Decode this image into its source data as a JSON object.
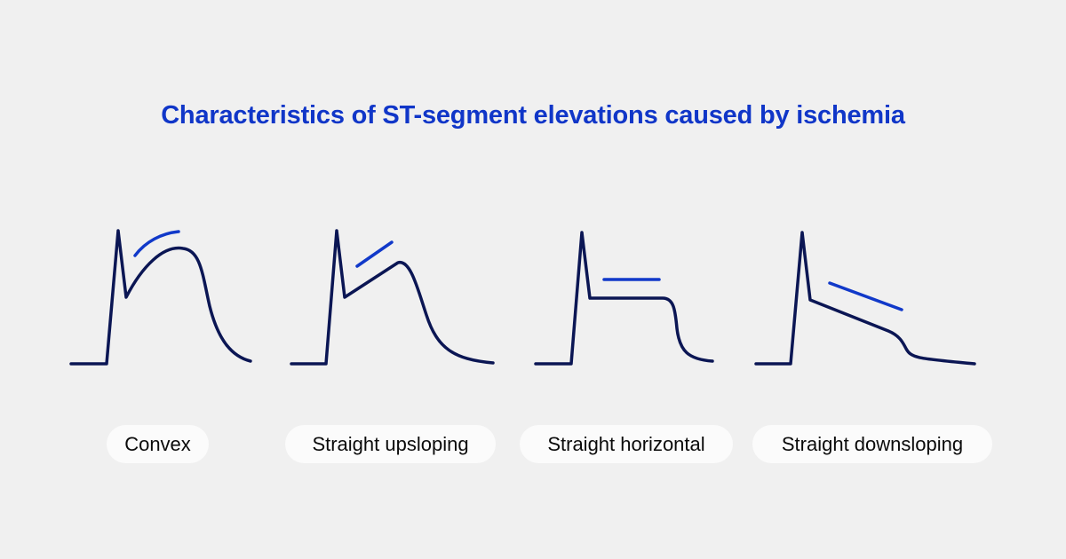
{
  "title": "Characteristics of ST-segment elevations caused by ischemia",
  "colors": {
    "background": "#f0f0f0",
    "title": "#1036c8",
    "trace": "#0b1654",
    "st_marker": "#1139c9",
    "label_pill": "#fbfbfb"
  },
  "panels": [
    {
      "label": "Convex"
    },
    {
      "label": "Straight upsloping"
    },
    {
      "label": "Straight horizontal"
    },
    {
      "label": "Straight downsloping"
    }
  ]
}
